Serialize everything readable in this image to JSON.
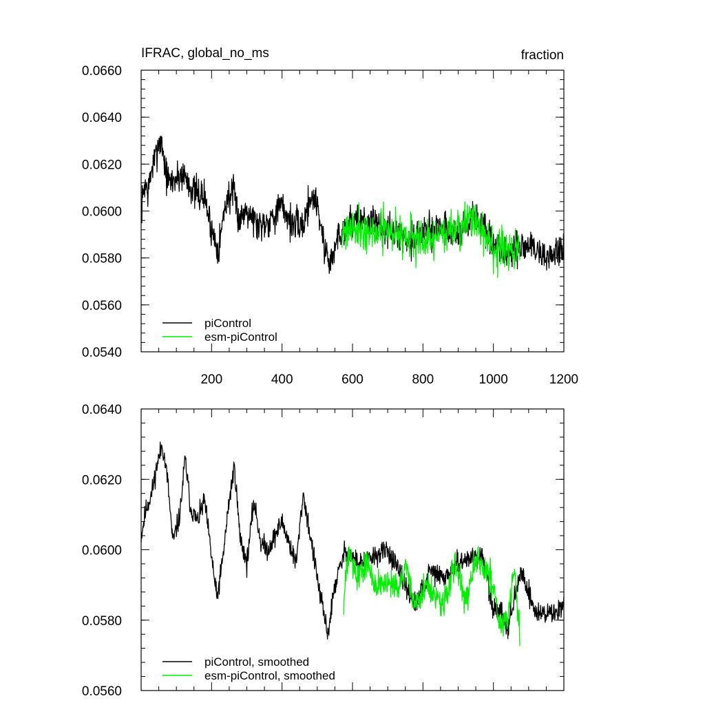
{
  "chart_data": [
    {
      "type": "line",
      "title_left": "IFRAC, global_no_ms",
      "title_right": "fraction",
      "xlim": [
        0,
        1200
      ],
      "ylim": [
        0.054,
        0.066
      ],
      "xticks": [
        200,
        400,
        600,
        800,
        1000,
        1200
      ],
      "xtick_labels": [
        "200",
        "400",
        "600",
        "800",
        "1000",
        "1200"
      ],
      "yticks": [
        0.054,
        0.056,
        0.058,
        0.06,
        0.062,
        0.064,
        0.066
      ],
      "ytick_labels": [
        "0.0540",
        "0.0560",
        "0.0580",
        "0.0600",
        "0.0620",
        "0.0640",
        "0.0660"
      ],
      "grid": false,
      "legend_position": "bottom-left",
      "series": [
        {
          "name": "piControl",
          "color": "#000000",
          "x_range": [
            0,
            1200
          ],
          "anchors": [
            [
              0,
              0.06
            ],
            [
              10,
              0.0612
            ],
            [
              20,
              0.0608
            ],
            [
              30,
              0.0618
            ],
            [
              40,
              0.0622
            ],
            [
              50,
              0.063
            ],
            [
              60,
              0.0628
            ],
            [
              70,
              0.0616
            ],
            [
              80,
              0.0612
            ],
            [
              100,
              0.0614
            ],
            [
              120,
              0.0616
            ],
            [
              150,
              0.0608
            ],
            [
              180,
              0.0606
            ],
            [
              200,
              0.0592
            ],
            [
              220,
              0.0584
            ],
            [
              240,
              0.0604
            ],
            [
              260,
              0.0608
            ],
            [
              280,
              0.0596
            ],
            [
              300,
              0.0602
            ],
            [
              330,
              0.0594
            ],
            [
              360,
              0.0596
            ],
            [
              400,
              0.0602
            ],
            [
              430,
              0.0594
            ],
            [
              460,
              0.0594
            ],
            [
              480,
              0.0606
            ],
            [
              500,
              0.0604
            ],
            [
              520,
              0.0584
            ],
            [
              540,
              0.0578
            ],
            [
              560,
              0.059
            ],
            [
              600,
              0.0596
            ],
            [
              650,
              0.0596
            ],
            [
              700,
              0.0592
            ],
            [
              750,
              0.0588
            ],
            [
              800,
              0.059
            ],
            [
              850,
              0.0594
            ],
            [
              900,
              0.059
            ],
            [
              950,
              0.0598
            ],
            [
              1000,
              0.0584
            ],
            [
              1050,
              0.0582
            ],
            [
              1100,
              0.0586
            ],
            [
              1150,
              0.058
            ],
            [
              1200,
              0.0584
            ]
          ],
          "noise": 0.0011,
          "seed": 7
        },
        {
          "name": "esm-piControl",
          "color": "#00ee00",
          "x_range": [
            570,
            1075
          ],
          "anchors": [
            [
              570,
              0.0592
            ],
            [
              600,
              0.0594
            ],
            [
              650,
              0.059
            ],
            [
              700,
              0.0592
            ],
            [
              750,
              0.059
            ],
            [
              800,
              0.0586
            ],
            [
              850,
              0.059
            ],
            [
              900,
              0.0594
            ],
            [
              950,
              0.0596
            ],
            [
              1000,
              0.0584
            ],
            [
              1050,
              0.0582
            ],
            [
              1075,
              0.0584
            ]
          ],
          "noise": 0.0013,
          "seed": 21
        }
      ]
    },
    {
      "type": "line",
      "xlim": [
        0,
        1200
      ],
      "ylim": [
        0.056,
        0.064
      ],
      "yticks": [
        0.056,
        0.058,
        0.06,
        0.062,
        0.064
      ],
      "ytick_labels": [
        "0.0560",
        "0.0580",
        "0.0600",
        "0.0620",
        "0.0640"
      ],
      "grid": false,
      "legend_position": "bottom-left",
      "series": [
        {
          "name": "piControl, smoothed",
          "color": "#000000",
          "x_range": [
            0,
            1200
          ],
          "anchors": [
            [
              0,
              0.0604
            ],
            [
              15,
              0.0612
            ],
            [
              30,
              0.0616
            ],
            [
              45,
              0.0624
            ],
            [
              60,
              0.063
            ],
            [
              75,
              0.062
            ],
            [
              90,
              0.0602
            ],
            [
              110,
              0.061
            ],
            [
              125,
              0.0626
            ],
            [
              140,
              0.0612
            ],
            [
              160,
              0.0608
            ],
            [
              180,
              0.0614
            ],
            [
              200,
              0.0598
            ],
            [
              215,
              0.0586
            ],
            [
              230,
              0.0596
            ],
            [
              250,
              0.0614
            ],
            [
              265,
              0.0624
            ],
            [
              280,
              0.0604
            ],
            [
              300,
              0.0596
            ],
            [
              320,
              0.0614
            ],
            [
              340,
              0.0602
            ],
            [
              360,
              0.06
            ],
            [
              380,
              0.0604
            ],
            [
              400,
              0.0608
            ],
            [
              420,
              0.0602
            ],
            [
              440,
              0.0596
            ],
            [
              460,
              0.0616
            ],
            [
              480,
              0.0604
            ],
            [
              510,
              0.0586
            ],
            [
              530,
              0.0576
            ],
            [
              550,
              0.059
            ],
            [
              580,
              0.06
            ],
            [
              620,
              0.0596
            ],
            [
              660,
              0.0598
            ],
            [
              700,
              0.06
            ],
            [
              740,
              0.0592
            ],
            [
              780,
              0.0584
            ],
            [
              820,
              0.0594
            ],
            [
              860,
              0.0592
            ],
            [
              900,
              0.0596
            ],
            [
              940,
              0.0598
            ],
            [
              970,
              0.0598
            ],
            [
              1000,
              0.0582
            ],
            [
              1020,
              0.0584
            ],
            [
              1040,
              0.0578
            ],
            [
              1080,
              0.0594
            ],
            [
              1120,
              0.0582
            ],
            [
              1150,
              0.0582
            ],
            [
              1180,
              0.0582
            ],
            [
              1200,
              0.0586
            ]
          ],
          "noise": 0.00045,
          "seed": 11
        },
        {
          "name": "esm-piControl, smoothed",
          "color": "#00ee00",
          "x_range": [
            575,
            1075
          ],
          "anchors": [
            [
              575,
              0.0584
            ],
            [
              590,
              0.0602
            ],
            [
              610,
              0.0592
            ],
            [
              640,
              0.0596
            ],
            [
              670,
              0.059
            ],
            [
              700,
              0.059
            ],
            [
              730,
              0.0588
            ],
            [
              750,
              0.0596
            ],
            [
              780,
              0.0584
            ],
            [
              810,
              0.059
            ],
            [
              840,
              0.0586
            ],
            [
              860,
              0.0584
            ],
            [
              890,
              0.0596
            ],
            [
              920,
              0.0586
            ],
            [
              950,
              0.0598
            ],
            [
              980,
              0.0594
            ],
            [
              1000,
              0.059
            ],
            [
              1020,
              0.0578
            ],
            [
              1040,
              0.058
            ],
            [
              1060,
              0.0594
            ],
            [
              1075,
              0.0576
            ]
          ],
          "noise": 0.00065,
          "seed": 33
        }
      ]
    }
  ]
}
